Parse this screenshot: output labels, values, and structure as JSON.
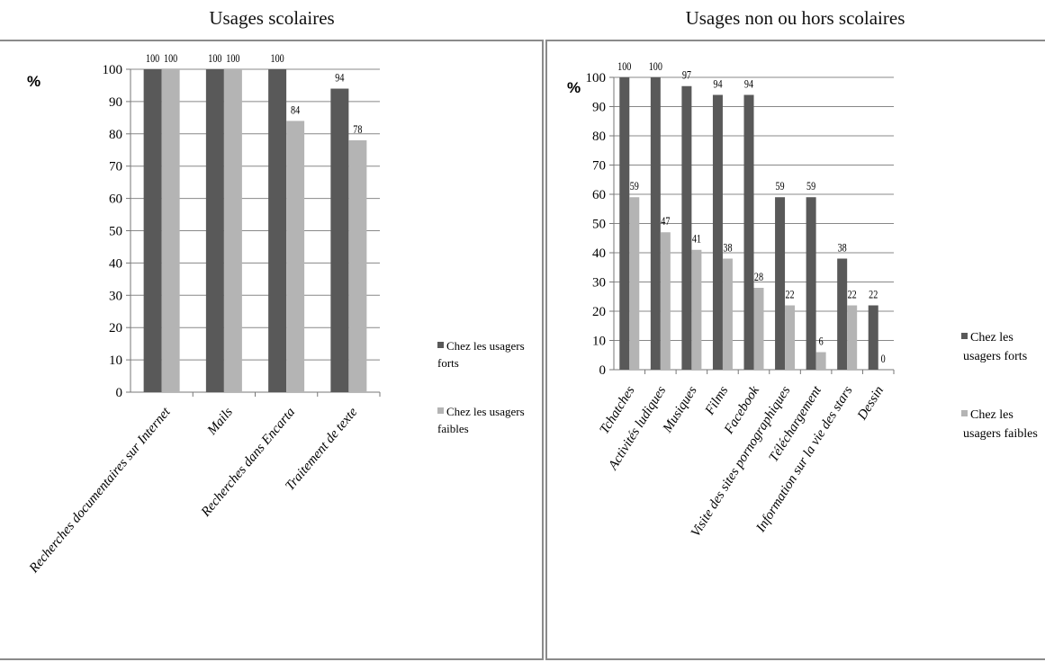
{
  "figure": {
    "left_title": "Usages scolaires",
    "right_title": "Usages non ou hors scolaires"
  },
  "colors": {
    "strong": "#595959",
    "weak": "#b4b4b4",
    "grid": "#888888",
    "axis": "#777777"
  },
  "chart_data": [
    {
      "type": "bar",
      "title": "Usages scolaires",
      "ylabel": "%",
      "ylim": [
        0,
        100
      ],
      "yticks": [
        0,
        10,
        20,
        30,
        40,
        50,
        60,
        70,
        80,
        90,
        100
      ],
      "grid": true,
      "legend_position": "right",
      "categories": [
        "Recherches documentaires sur Internet",
        "Mails",
        "Recherches dans Encarta",
        "Traitement de texte"
      ],
      "series": [
        {
          "name": "Chez les usagers forts",
          "color": "#595959",
          "values": [
            100,
            100,
            100,
            94
          ]
        },
        {
          "name": "Chez les usagers faibles",
          "color": "#b4b4b4",
          "values": [
            100,
            100,
            84,
            78
          ]
        }
      ]
    },
    {
      "type": "bar",
      "title": "Usages non ou hors scolaires",
      "ylabel": "%",
      "ylim": [
        0,
        100
      ],
      "yticks": [
        0,
        10,
        20,
        30,
        40,
        50,
        60,
        70,
        80,
        90,
        100
      ],
      "grid": true,
      "legend_position": "right",
      "categories": [
        "Tchatches",
        "Activités ludiques",
        "Musiques",
        "Films",
        "Facebook",
        "Visite des sites pornographiques",
        "Téléchargement",
        "Information sur la vie des stars",
        "Dessin"
      ],
      "series": [
        {
          "name": "Chez les usagers forts",
          "color": "#595959",
          "values": [
            100,
            100,
            97,
            94,
            94,
            59,
            59,
            38,
            22
          ]
        },
        {
          "name": "Chez les usagers faibles",
          "color": "#b4b4b4",
          "values": [
            59,
            47,
            41,
            38,
            28,
            22,
            6,
            22,
            0
          ]
        }
      ]
    }
  ]
}
